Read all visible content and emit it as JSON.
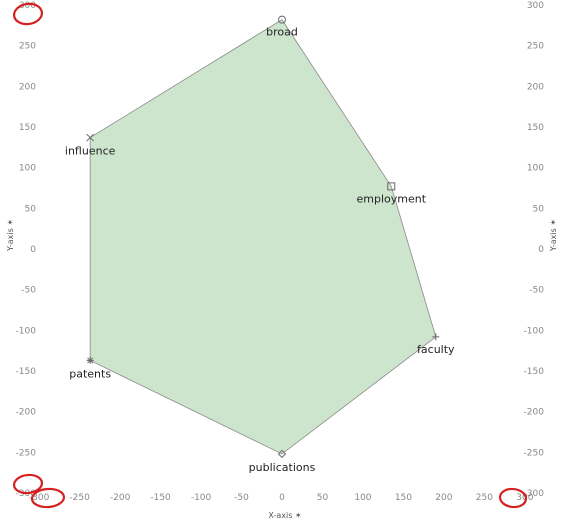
{
  "chart_data": {
    "type": "area",
    "x": [
      0,
      135,
      190,
      0,
      -237,
      -237
    ],
    "y": [
      282,
      77,
      -108,
      -252,
      -137,
      137
    ],
    "point_labels": [
      "broad",
      "employment",
      "faculty",
      "publications",
      "patents",
      "influence"
    ],
    "markers": [
      "circle",
      "square",
      "plus",
      "diamond",
      "star",
      "x"
    ],
    "xlim": [
      -300,
      300
    ],
    "ylim": [
      -300,
      300
    ],
    "xticks": [
      -300,
      -250,
      -200,
      -150,
      -100,
      -50,
      0,
      50,
      100,
      150,
      200,
      250,
      300
    ],
    "yticks": [
      -300,
      -250,
      -200,
      -150,
      -100,
      -50,
      0,
      50,
      100,
      150,
      200,
      250,
      300
    ],
    "xlabel": "X-axis ✶",
    "ylabel": "Y-axis ✶",
    "grid": false,
    "colors": {
      "fill": "#cde5cc",
      "stroke": "#8a8a8a",
      "tick_text": "#888888",
      "highlight": "#d42020"
    },
    "highlighted_ticks": [
      "left-y-300-top",
      "left-y-300-bottom",
      "x-300-left",
      "x-300-right"
    ]
  }
}
